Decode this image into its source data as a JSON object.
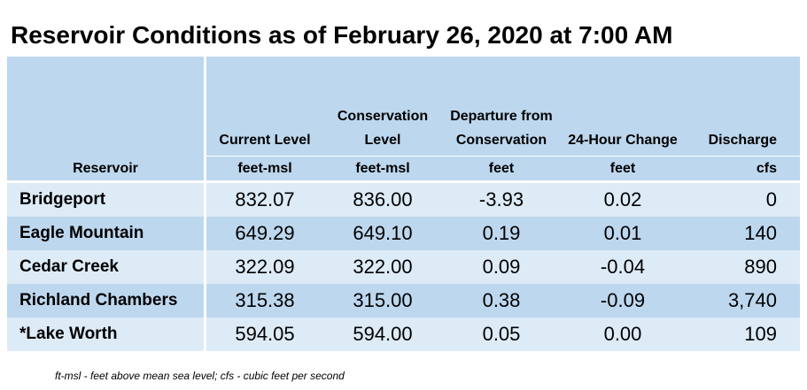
{
  "title": "Reservoir Conditions as of February 26, 2020 at 7:00 AM",
  "columns": [
    {
      "label": "Reservoir",
      "unit": ""
    },
    {
      "label": "Current Level",
      "unit": "feet-msl"
    },
    {
      "label": "Conservation Level",
      "unit": "feet-msl"
    },
    {
      "label": "Departure from Conservation",
      "unit": "feet"
    },
    {
      "label": "24-Hour Change",
      "unit": "feet"
    },
    {
      "label": "Discharge",
      "unit": "cfs"
    }
  ],
  "rows": [
    {
      "name": "Bridgeport",
      "current": "832.07",
      "conservation": "836.00",
      "departure": "-3.93",
      "change": "0.02",
      "discharge": "0"
    },
    {
      "name": "Eagle Mountain",
      "current": "649.29",
      "conservation": "649.10",
      "departure": "0.19",
      "change": "0.01",
      "discharge": "140"
    },
    {
      "name": "Cedar Creek",
      "current": "322.09",
      "conservation": "322.00",
      "departure": "0.09",
      "change": "-0.04",
      "discharge": "890"
    },
    {
      "name": "Richland Chambers",
      "current": "315.38",
      "conservation": "315.00",
      "departure": "0.38",
      "change": "-0.09",
      "discharge": "3,740"
    },
    {
      "name": "*Lake Worth",
      "current": "594.05",
      "conservation": "594.00",
      "departure": "0.05",
      "change": "0.00",
      "discharge": "109"
    }
  ],
  "footnote": "ft-msl - feet above mean sea level; cfs - cubic feet per second",
  "colors": {
    "header_bg": "#bdd7ee",
    "row_light": "#ddebf7",
    "row_dark": "#bdd7ee"
  }
}
